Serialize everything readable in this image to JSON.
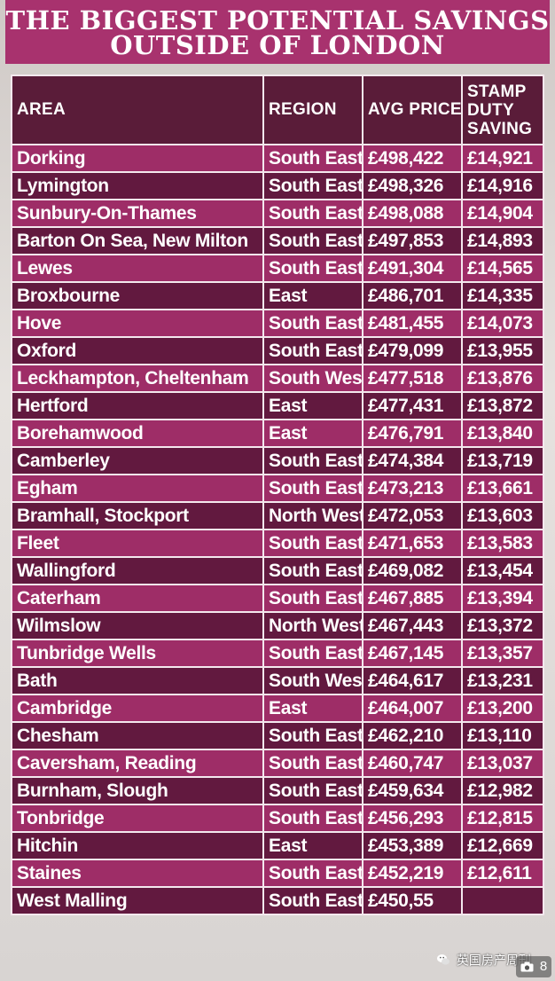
{
  "title": {
    "line1": "THE BIGGEST POTENTIAL SAVINGS",
    "line2": "OUTSIDE OF LONDON"
  },
  "table": {
    "headers": {
      "area": "AREA",
      "region": "REGION",
      "price": "AVG PRICE",
      "stamp": [
        "STAMP",
        "DUTY",
        "SAVING"
      ]
    },
    "rows": [
      {
        "area": "Dorking",
        "region": "South East",
        "price": "£498,422",
        "saving": "£14,921"
      },
      {
        "area": "Lymington",
        "region": "South East",
        "price": "£498,326",
        "saving": "£14,916"
      },
      {
        "area": "Sunbury-On-Thames",
        "region": "South East",
        "price": "£498,088",
        "saving": "£14,904"
      },
      {
        "area": "Barton On Sea, New Milton",
        "region": "South East",
        "price": "£497,853",
        "saving": "£14,893"
      },
      {
        "area": "Lewes",
        "region": "South East",
        "price": "£491,304",
        "saving": "£14,565"
      },
      {
        "area": "Broxbourne",
        "region": "East",
        "price": "£486,701",
        "saving": "£14,335"
      },
      {
        "area": "Hove",
        "region": "South East",
        "price": "£481,455",
        "saving": "£14,073"
      },
      {
        "area": "Oxford",
        "region": "South East",
        "price": "£479,099",
        "saving": "£13,955"
      },
      {
        "area": "Leckhampton, Cheltenham",
        "region": "South West",
        "price": "£477,518",
        "saving": "£13,876"
      },
      {
        "area": "Hertford",
        "region": "East",
        "price": "£477,431",
        "saving": "£13,872"
      },
      {
        "area": "Borehamwood",
        "region": "East",
        "price": "£476,791",
        "saving": "£13,840"
      },
      {
        "area": "Camberley",
        "region": "South East",
        "price": "£474,384",
        "saving": "£13,719"
      },
      {
        "area": "Egham",
        "region": "South East",
        "price": "£473,213",
        "saving": "£13,661"
      },
      {
        "area": "Bramhall, Stockport",
        "region": "North West",
        "price": "£472,053",
        "saving": "£13,603"
      },
      {
        "area": "Fleet",
        "region": "South East",
        "price": "£471,653",
        "saving": "£13,583"
      },
      {
        "area": "Wallingford",
        "region": "South East",
        "price": "£469,082",
        "saving": "£13,454"
      },
      {
        "area": "Caterham",
        "region": "South East",
        "price": "£467,885",
        "saving": "£13,394"
      },
      {
        "area": "Wilmslow",
        "region": "North West",
        "price": "£467,443",
        "saving": "£13,372"
      },
      {
        "area": "Tunbridge Wells",
        "region": "South East",
        "price": "£467,145",
        "saving": "£13,357"
      },
      {
        "area": "Bath",
        "region": "South West",
        "price": "£464,617",
        "saving": "£13,231"
      },
      {
        "area": "Cambridge",
        "region": "East",
        "price": "£464,007",
        "saving": "£13,200"
      },
      {
        "area": "Chesham",
        "region": "South East",
        "price": "£462,210",
        "saving": "£13,110"
      },
      {
        "area": "Caversham, Reading",
        "region": "South East",
        "price": "£460,747",
        "saving": "£13,037"
      },
      {
        "area": "Burnham, Slough",
        "region": "South East",
        "price": "£459,634",
        "saving": "£12,982"
      },
      {
        "area": "Tonbridge",
        "region": "South East",
        "price": "£456,293",
        "saving": "£12,815"
      },
      {
        "area": "Hitchin",
        "region": "East",
        "price": "£453,389",
        "saving": "£12,669"
      },
      {
        "area": "Staines",
        "region": "South East",
        "price": "£452,219",
        "saving": "£12,611"
      },
      {
        "area": "West Malling",
        "region": "South East",
        "price": "£450,55",
        "saving": ""
      }
    ]
  },
  "watermark": {
    "text": "英国房产周刊",
    "icon": "wechat-icon"
  },
  "badge": {
    "icon": "camera-icon",
    "count": "8"
  },
  "colors": {
    "title_bg": "#a8326e",
    "header_bg": "#5a1c39",
    "row_light": "#9e2d67",
    "row_dark": "#62193f",
    "grid": "#f4e8ee"
  }
}
